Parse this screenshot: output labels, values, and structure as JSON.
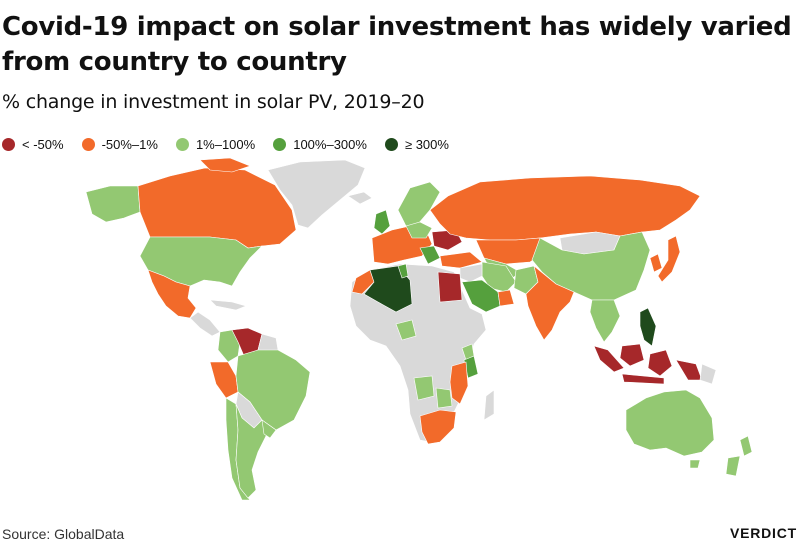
{
  "header": {
    "title": "Covid-19 impact on solar investment has widely varied from country to country",
    "subtitle": "% change in investment in solar PV, 2019–20"
  },
  "legend": [
    {
      "label": "< -50%",
      "color": "#a6282a"
    },
    {
      "label": "-50%–1%",
      "color": "#f26a2a"
    },
    {
      "label": "1%–100%",
      "color": "#93c872"
    },
    {
      "label": "100%–300%",
      "color": "#55a03d"
    },
    {
      "label": "≥ 300%",
      "color": "#1f4a1c"
    }
  ],
  "map": {
    "no_data_color": "#d9d9d9",
    "regions": [
      {
        "name": "Canada",
        "category": "-50%–1%"
      },
      {
        "name": "Alaska",
        "category": "1%–100%"
      },
      {
        "name": "United States",
        "category": "1%–100%"
      },
      {
        "name": "Mexico",
        "category": "-50%–1%"
      },
      {
        "name": "Central America",
        "category": "no data"
      },
      {
        "name": "Venezuela",
        "category": "< -50%"
      },
      {
        "name": "Colombia",
        "category": "1%–100%"
      },
      {
        "name": "Peru",
        "category": "-50%–1%"
      },
      {
        "name": "Brazil",
        "category": "1%–100%"
      },
      {
        "name": "Chile",
        "category": "1%–100%"
      },
      {
        "name": "Argentina",
        "category": "1%–100%"
      },
      {
        "name": "Greenland",
        "category": "no data"
      },
      {
        "name": "Russia",
        "category": "-50%–1%"
      },
      {
        "name": "Western Europe",
        "category": "-50%–1%"
      },
      {
        "name": "Nordic countries",
        "category": "1%–100%"
      },
      {
        "name": "Ukraine",
        "category": "< -50%"
      },
      {
        "name": "Turkey",
        "category": "-50%–1%"
      },
      {
        "name": "Algeria",
        "category": "≥ 300%"
      },
      {
        "name": "Egypt",
        "category": "< -50%"
      },
      {
        "name": "Saudi Arabia",
        "category": "100%–300%"
      },
      {
        "name": "Iran",
        "category": "1%–100%"
      },
      {
        "name": "Kazakhstan",
        "category": "-50%–1%"
      },
      {
        "name": "China",
        "category": "1%–100%"
      },
      {
        "name": "Mongolia",
        "category": "no data"
      },
      {
        "name": "India",
        "category": "-50%–1%"
      },
      {
        "name": "Japan",
        "category": "-50%–1%"
      },
      {
        "name": "Philippines",
        "category": "≥ 300%"
      },
      {
        "name": "Indonesia",
        "category": "< -50%"
      },
      {
        "name": "Australia",
        "category": "1%–100%"
      },
      {
        "name": "New Zealand",
        "category": "1%–100%"
      },
      {
        "name": "Kenya",
        "category": "100%–300%"
      },
      {
        "name": "South Africa",
        "category": "-50%–1%"
      }
    ]
  },
  "footer": {
    "source": "Source: GlobalData",
    "brand": "VERDICT"
  }
}
